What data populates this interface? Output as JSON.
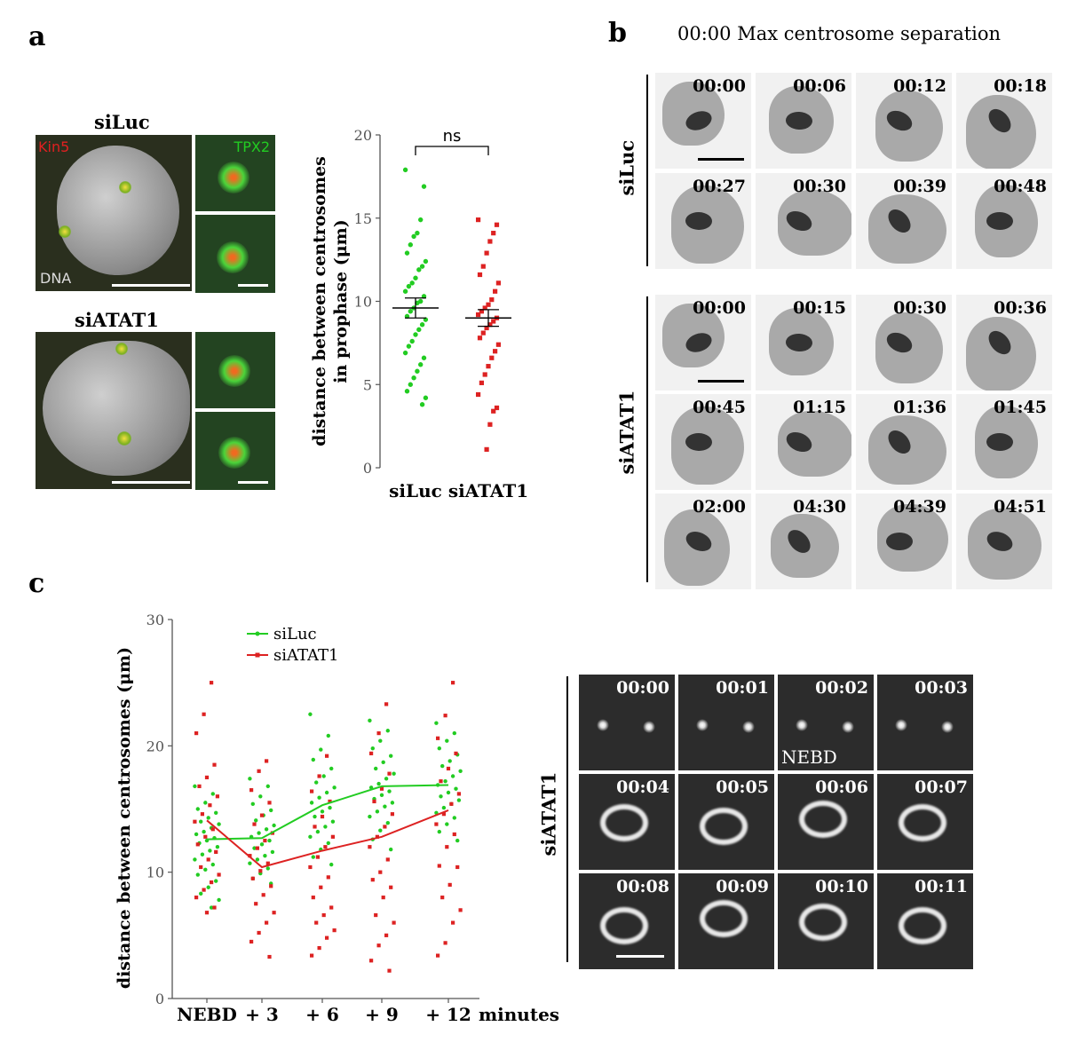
{
  "panel_a": {
    "letter": "a",
    "condition_top": "siLuc",
    "condition_bottom": "siATAT1",
    "label_kin5": "Kin5",
    "label_tpx2": "TPX2",
    "label_dna": "DNA",
    "colors": {
      "kin5": "#e02020",
      "tpx2": "#22cc22"
    }
  },
  "panel_b": {
    "letter": "b",
    "title": "00:00 Max centrosome separation",
    "row_siluc": "siLuc",
    "row_siatat1": "siATAT1",
    "siluc_times": [
      "00:00",
      "00:06",
      "00:12",
      "00:18",
      "00:27",
      "00:30",
      "00:39",
      "00:48"
    ],
    "siatat1_times": [
      "00:00",
      "00:15",
      "00:30",
      "00:36",
      "00:45",
      "01:15",
      "01:36",
      "01:45",
      "02:00",
      "04:30",
      "04:39",
      "04:51"
    ]
  },
  "panel_c": {
    "letter": "c",
    "row_label": "siATAT1",
    "times": [
      "00:00",
      "00:01",
      "00:02",
      "00:03",
      "00:04",
      "00:05",
      "00:06",
      "00:07",
      "00:08",
      "00:09",
      "00:10",
      "00:11"
    ],
    "nebd_label": "NEBD"
  },
  "chart_data": [
    {
      "type": "scatter",
      "title": "",
      "ylabel_line1": "distance between centrosomes",
      "ylabel_line2": "in prophase (μm)",
      "ylabel": "distance between centrosomes in prophase (μm)",
      "categories": [
        "siLuc",
        "siATAT1"
      ],
      "ylim": [
        0,
        20
      ],
      "yticks": [
        "0",
        "5",
        "10",
        "15",
        "20"
      ],
      "significance": "ns",
      "colors": [
        "#22cc22",
        "#dd2222"
      ],
      "series": [
        {
          "name": "siLuc",
          "mean": 9.6,
          "sem": 0.6,
          "values": [
            17.9,
            16.9,
            14.9,
            14.1,
            13.9,
            13.4,
            12.9,
            12.4,
            12.1,
            11.9,
            11.4,
            11.1,
            10.9,
            10.6,
            10.3,
            10.0,
            9.9,
            9.6,
            9.4,
            9.1,
            8.9,
            8.6,
            8.3,
            8.0,
            7.6,
            7.3,
            6.9,
            6.6,
            6.2,
            5.8,
            5.4,
            5.0,
            4.6,
            4.2,
            3.8
          ]
        },
        {
          "name": "siATAT1",
          "mean": 9.0,
          "sem": 0.5,
          "values": [
            14.9,
            14.6,
            14.1,
            13.6,
            12.9,
            12.1,
            11.6,
            11.1,
            10.6,
            10.1,
            9.8,
            9.6,
            9.4,
            9.2,
            9.0,
            8.8,
            8.6,
            8.4,
            8.1,
            7.8,
            7.4,
            7.0,
            6.6,
            6.1,
            5.6,
            5.1,
            4.4,
            3.6,
            3.4,
            2.6,
            1.1
          ]
        }
      ]
    },
    {
      "type": "scatter",
      "title": "",
      "ylabel": "distance between centrosomes (μm)",
      "xlabel": "minutes",
      "categories": [
        "NEBD",
        "+ 3",
        "+ 6",
        "+ 9",
        "+ 12"
      ],
      "x_last_suffix": "minutes",
      "ylim": [
        0,
        30
      ],
      "yticks": [
        "0",
        "10",
        "20",
        "30"
      ],
      "legend_position": "top-left",
      "series": [
        {
          "name": "siLuc",
          "color": "#22cc22",
          "line": [
            12.6,
            12.7,
            15.3,
            16.8,
            16.9
          ],
          "values": [
            [
              16.8,
              16.2,
              15.5,
              15.0,
              14.7,
              14.3,
              14.0,
              13.8,
              13.5,
              13.2,
              13.0,
              12.7,
              12.5,
              12.3,
              12.0,
              11.7,
              11.4,
              11.0,
              10.6,
              10.2,
              9.8,
              9.3,
              8.8,
              8.3,
              7.8,
              7.2
            ],
            [
              17.4,
              16.8,
              16.0,
              15.4,
              14.9,
              14.5,
              14.1,
              13.7,
              13.4,
              13.1,
              12.8,
              12.5,
              12.2,
              11.9,
              11.6,
              11.3,
              11.0,
              10.7,
              10.3,
              9.9,
              9.5,
              9.1
            ],
            [
              22.5,
              20.8,
              19.7,
              18.9,
              18.2,
              17.6,
              17.1,
              16.7,
              16.3,
              15.9,
              15.5,
              15.1,
              14.8,
              14.4,
              14.0,
              13.6,
              13.2,
              12.8,
              12.3,
              11.8,
              11.2,
              10.6
            ],
            [
              22.0,
              21.2,
              20.4,
              19.8,
              19.2,
              18.7,
              18.2,
              17.8,
              17.4,
              17.0,
              16.7,
              16.4,
              16.1,
              15.8,
              15.5,
              15.2,
              14.8,
              14.4,
              13.9,
              13.3,
              12.6,
              11.8
            ],
            [
              21.8,
              21.0,
              20.4,
              19.8,
              19.3,
              18.8,
              18.4,
              18.0,
              17.6,
              17.2,
              16.9,
              16.6,
              16.3,
              16.0,
              15.7,
              15.4,
              15.1,
              14.7,
              14.3,
              13.8,
              13.2,
              12.5
            ]
          ]
        },
        {
          "name": "siATAT1",
          "color": "#dd2222",
          "line": [
            14.1,
            10.4,
            11.7,
            12.8,
            14.9
          ],
          "values": [
            [
              25.0,
              22.5,
              21.0,
              18.5,
              17.5,
              16.8,
              16.0,
              15.3,
              14.6,
              14.0,
              13.4,
              12.8,
              12.2,
              11.6,
              11.0,
              10.4,
              9.8,
              9.2,
              8.6,
              8.0,
              7.2,
              6.8
            ],
            [
              18.8,
              18.0,
              16.5,
              15.5,
              14.5,
              13.8,
              13.1,
              12.5,
              11.9,
              11.3,
              10.7,
              10.1,
              9.5,
              8.9,
              8.2,
              7.5,
              6.8,
              6.0,
              5.2,
              4.5,
              3.3
            ],
            [
              19.2,
              17.6,
              16.4,
              15.6,
              14.4,
              13.6,
              12.8,
              12.0,
              11.2,
              10.4,
              9.6,
              8.8,
              8.0,
              7.2,
              6.6,
              6.0,
              5.4,
              4.8,
              4.0,
              3.4
            ],
            [
              23.3,
              21.0,
              19.4,
              17.8,
              16.6,
              15.6,
              14.6,
              13.6,
              12.8,
              12.0,
              11.0,
              10.0,
              9.4,
              8.8,
              8.0,
              6.6,
              6.0,
              5.0,
              4.2,
              3.0,
              2.2
            ],
            [
              25.0,
              22.4,
              20.6,
              19.4,
              18.2,
              17.2,
              16.2,
              15.4,
              14.6,
              13.8,
              13.0,
              12.0,
              10.5,
              10.4,
              9.0,
              8.0,
              7.0,
              6.0,
              4.4,
              3.4
            ]
          ]
        }
      ]
    }
  ]
}
